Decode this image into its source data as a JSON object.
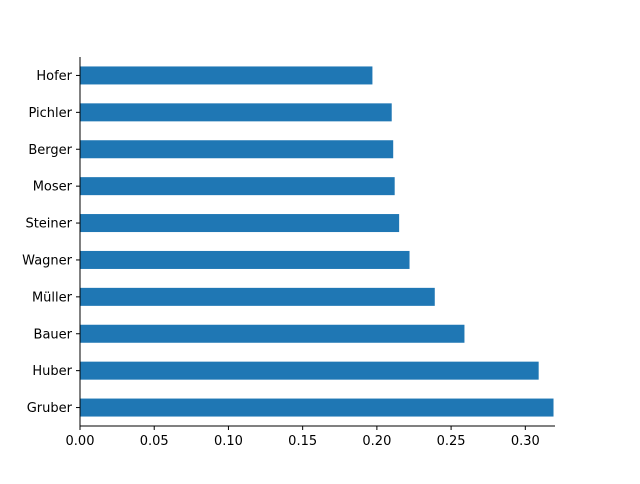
{
  "chart_data": {
    "type": "bar",
    "orientation": "horizontal",
    "categories": [
      "Hofer",
      "Pichler",
      "Berger",
      "Moser",
      "Steiner",
      "Wagner",
      "Müller",
      "Bauer",
      "Huber",
      "Gruber"
    ],
    "values": [
      0.197,
      0.21,
      0.211,
      0.212,
      0.215,
      0.222,
      0.239,
      0.259,
      0.309,
      0.319
    ],
    "xlim": [
      0,
      0.32
    ],
    "x_ticks": [
      0.0,
      0.05,
      0.1,
      0.15,
      0.2,
      0.25,
      0.3
    ],
    "x_tick_labels": [
      "0.00",
      "0.05",
      "0.10",
      "0.15",
      "0.20",
      "0.25",
      "0.30"
    ],
    "grid": false,
    "colors": {
      "bar": "#1f77b4",
      "axis": "#000000"
    }
  }
}
